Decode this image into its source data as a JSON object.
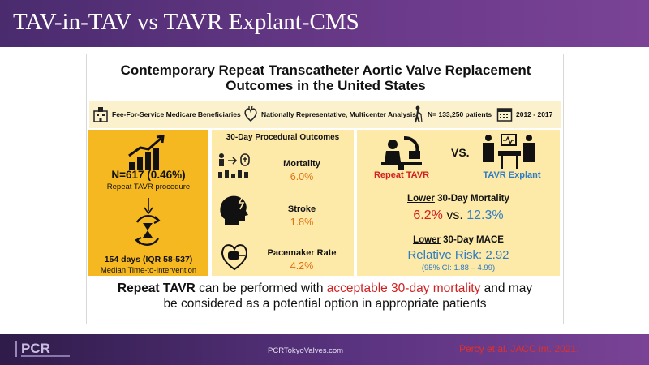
{
  "header": {
    "title": "TAV-in-TAV vs TAVR Explant-CMS"
  },
  "card": {
    "headline_line1": "Contemporary Repeat Transcatheter Aortic Valve Replacement",
    "headline_line2": "Outcomes in the United States",
    "info": [
      {
        "icon": "hospital-icon",
        "text": "Fee-For-Service Medicare Beneficiaries"
      },
      {
        "icon": "heart-icon",
        "text": "Nationally Representative, Multicenter Analysis"
      },
      {
        "icon": "person-cane-icon",
        "text": "N= 133,250 patients"
      },
      {
        "icon": "calendar-icon",
        "text": "2012 - 2017"
      }
    ],
    "left": {
      "n_value": "N=617 (0.46%)",
      "n_label": "Repeat TAVR procedure",
      "time_value": "154 days (IQR 58-537)",
      "time_label": "Median Time-to-Intervention"
    },
    "middle": {
      "title": "30-Day Procedural Outcomes",
      "outcomes": [
        {
          "label": "Mortality",
          "value": "6.0%"
        },
        {
          "label": "Stroke",
          "value": "1.8%"
        },
        {
          "label": "Pacemaker Rate",
          "value": "4.2%"
        }
      ]
    },
    "right": {
      "repeat_label": "Repeat TAVR",
      "vs_label": "VS.",
      "explant_label": "TAVR Explant",
      "mortality_heading_lower": "Lower",
      "mortality_heading_rest": " 30-Day Mortality",
      "mortality_a": "6.2%",
      "mortality_vs": " vs. ",
      "mortality_b": "12.3%",
      "mace_heading_lower": "Lower",
      "mace_heading_rest": " 30-Day MACE",
      "rr_text": "Relative Risk: 2.92",
      "ci_text": "(95% CI: 1.88 – 4.99)"
    },
    "conclusion": {
      "part1": "Repeat TAVR",
      "part2": " can be performed with ",
      "part3": "acceptable 30-day mortality",
      "part4": " and may",
      "line2": "be considered as a potential option in appropriate patients"
    }
  },
  "footer": {
    "logo": "PCR",
    "url": "PCRTokyoValves.com",
    "citation": "Percy et al. JACC int. 2021."
  },
  "colors": {
    "purple": "#5a3380",
    "gold": "#f5b820",
    "cream": "#fde9a8",
    "red": "#d02020",
    "blue": "#2e7bc4"
  }
}
